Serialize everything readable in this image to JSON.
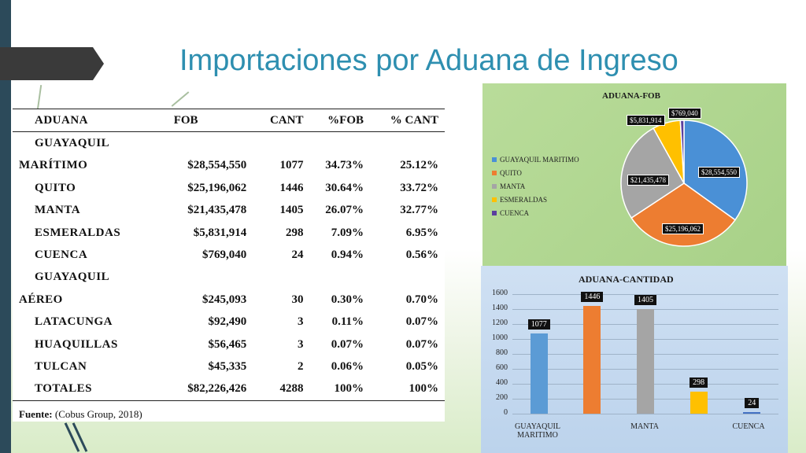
{
  "title": "Importaciones por Aduana de Ingreso",
  "table": {
    "headers": [
      "ADUANA",
      "FOB",
      "CANT",
      "%FOB",
      "% CANT"
    ],
    "rows": [
      [
        "GUAYAQUIL",
        "",
        "",
        "",
        ""
      ],
      [
        "MARÍTIMO",
        "$28,554,550",
        "1077",
        "34.73%",
        "25.12%"
      ],
      [
        "QUITO",
        "$25,196,062",
        "1446",
        "30.64%",
        "33.72%"
      ],
      [
        "MANTA",
        "$21,435,478",
        "1405",
        "26.07%",
        "32.77%"
      ],
      [
        "ESMERALDAS",
        "$5,831,914",
        "298",
        "7.09%",
        "6.95%"
      ],
      [
        "CUENCA",
        "$769,040",
        "24",
        "0.94%",
        "0.56%"
      ],
      [
        "GUAYAQUIL",
        "",
        "",
        "",
        ""
      ],
      [
        "AÉREO",
        "$245,093",
        "30",
        "0.30%",
        "0.70%"
      ],
      [
        "LATACUNGA",
        "$92,490",
        "3",
        "0.11%",
        "0.07%"
      ],
      [
        "HUAQUILLAS",
        "$56,465",
        "3",
        "0.07%",
        "0.07%"
      ],
      [
        "TULCAN",
        "$45,335",
        "2",
        "0.06%",
        "0.05%"
      ],
      [
        "TOTALES",
        "$82,226,426",
        "4288",
        "100%",
        "100%"
      ]
    ],
    "source_label": "Fuente:",
    "source_text": "(Cobus Group, 2018)"
  },
  "chart_data": [
    {
      "type": "pie",
      "title": "ADUANA-FOB",
      "categories": [
        "GUAYAQUIL MARITIMO",
        "QUITO",
        "MANTA",
        "ESMERALDAS",
        "CUENCA"
      ],
      "values": [
        28554550,
        25196062,
        21435478,
        5831914,
        769040
      ],
      "data_labels": [
        "$28,554,550",
        "$25,196,062",
        "$21,435,478",
        "$5,831,914",
        "$769,040"
      ],
      "colors": [
        "#4a90d6",
        "#ed7d31",
        "#a5a5a5",
        "#ffc000",
        "#5b3f9e"
      ],
      "legend": "left"
    },
    {
      "type": "bar",
      "title": "ADUANA-CANTIDAD",
      "categories": [
        "GUAYAQUIL MARITIMO",
        "QUITO",
        "MANTA",
        "ESMERALDAS",
        "CUENCA"
      ],
      "x_tick_labels": [
        "GUAYAQUIL\nMARITIMO",
        "",
        "MANTA",
        "",
        "CUENCA"
      ],
      "values": [
        1077,
        1446,
        1405,
        298,
        24
      ],
      "colors": [
        "#5b9bd5",
        "#ed7d31",
        "#a5a5a5",
        "#ffc000",
        "#4472c4"
      ],
      "ylim": [
        0,
        1600
      ],
      "yticks": [
        0,
        200,
        400,
        600,
        800,
        1000,
        1200,
        1400,
        1600
      ],
      "grid": true
    }
  ]
}
